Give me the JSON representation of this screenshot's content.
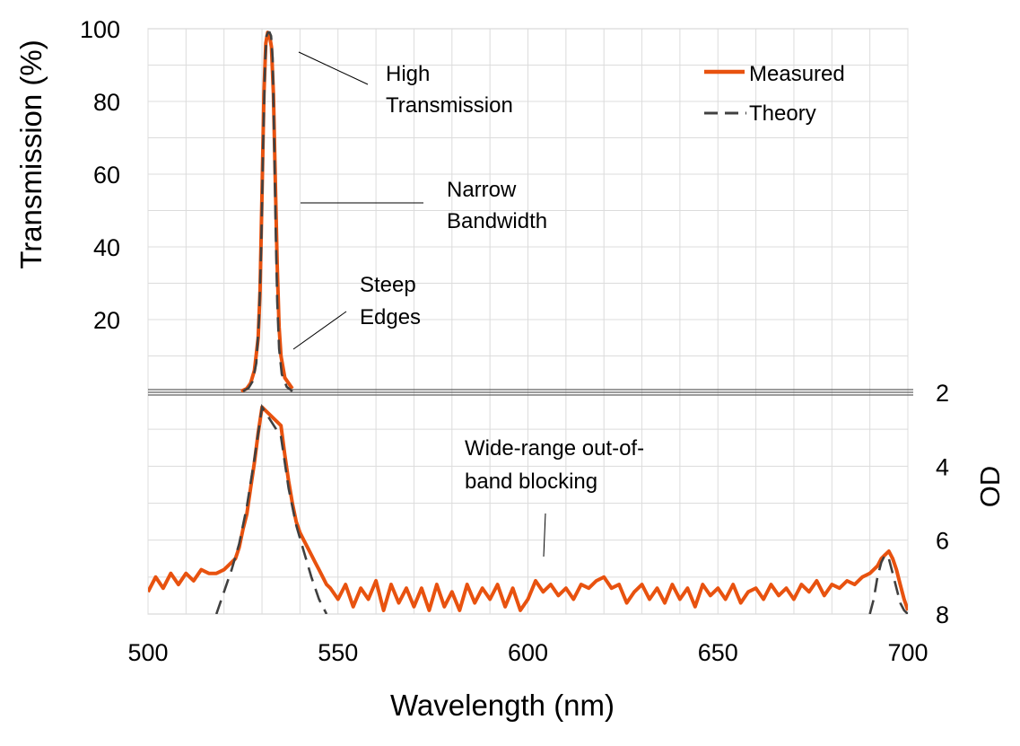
{
  "chart_data": {
    "type": "line",
    "xlabel": "Wavelength (nm)",
    "ylabel_left": "Transmission (%)",
    "ylabel_right": "OD",
    "xlim": [
      500,
      700
    ],
    "x_ticks": [
      "500",
      "550",
      "600",
      "650",
      "700"
    ],
    "upper_panel": {
      "scale": "linear transmission",
      "ylim": [
        0,
        100
      ],
      "y_ticks": [
        "20",
        "40",
        "60",
        "80",
        "100"
      ]
    },
    "lower_panel": {
      "scale": "optical density (reversed)",
      "ylim": [
        2,
        8
      ],
      "y_ticks": [
        "2",
        "4",
        "6",
        "8"
      ]
    },
    "grid": true,
    "legend_position": "top-right",
    "legend": [
      {
        "label": "Measured",
        "color": "#E8520F",
        "style": "solid"
      },
      {
        "label": "Theory",
        "color": "#404040",
        "style": "dashed"
      }
    ],
    "annotations": {
      "high": [
        "High",
        "Transmission"
      ],
      "narrow": [
        "Narrow",
        "Bandwidth"
      ],
      "steep": [
        "Steep",
        "Edges"
      ],
      "blocking": [
        "Wide-range out-of-",
        "band blocking"
      ]
    },
    "series": [
      {
        "name": "Measured",
        "color": "#E8520F",
        "transmission": {
          "x": [
            524.5,
            526,
            527,
            528,
            529,
            529.5,
            530,
            530.5,
            531,
            531.5,
            532,
            532.5,
            533,
            533.5,
            534,
            534.5,
            535,
            536,
            538
          ],
          "y": [
            0.3,
            1.0,
            2.5,
            6,
            15,
            28,
            55,
            82,
            96,
            99,
            98,
            95,
            82,
            58,
            35,
            18,
            10,
            4,
            1
          ]
        },
        "od": {
          "x": [
            500,
            502,
            504,
            506,
            508,
            510,
            512,
            514,
            516,
            518,
            520,
            522,
            523,
            524,
            525,
            526,
            527,
            528,
            529,
            530,
            535,
            536,
            537,
            538,
            539,
            540,
            541,
            542,
            543,
            544,
            545,
            546,
            547,
            548,
            550,
            552,
            554,
            556,
            558,
            560,
            562,
            564,
            566,
            568,
            570,
            572,
            574,
            576,
            578,
            580,
            582,
            584,
            586,
            588,
            590,
            592,
            594,
            596,
            598,
            600,
            602,
            604,
            606,
            608,
            610,
            612,
            614,
            616,
            618,
            620,
            622,
            624,
            626,
            628,
            630,
            632,
            634,
            636,
            638,
            640,
            642,
            644,
            646,
            648,
            650,
            652,
            654,
            656,
            658,
            660,
            662,
            664,
            666,
            668,
            670,
            672,
            674,
            676,
            678,
            680,
            682,
            684,
            686,
            688,
            690,
            692,
            693,
            694,
            695,
            696,
            697,
            698,
            699,
            700
          ],
          "y": [
            7.4,
            7.0,
            7.3,
            6.9,
            7.2,
            6.9,
            7.1,
            6.8,
            6.9,
            6.9,
            6.8,
            6.6,
            6.5,
            6.2,
            5.7,
            5.3,
            4.6,
            3.9,
            3.1,
            2.4,
            2.9,
            3.7,
            4.4,
            5.0,
            5.5,
            5.8,
            6.0,
            6.2,
            6.4,
            6.6,
            6.8,
            7.0,
            7.2,
            7.3,
            7.6,
            7.2,
            7.8,
            7.3,
            7.6,
            7.1,
            7.9,
            7.2,
            7.7,
            7.3,
            7.8,
            7.3,
            7.9,
            7.2,
            7.8,
            7.4,
            7.9,
            7.2,
            7.7,
            7.3,
            7.6,
            7.2,
            7.8,
            7.3,
            7.9,
            7.6,
            7.1,
            7.4,
            7.2,
            7.5,
            7.3,
            7.6,
            7.2,
            7.3,
            7.1,
            7.0,
            7.3,
            7.2,
            7.7,
            7.4,
            7.2,
            7.6,
            7.3,
            7.7,
            7.2,
            7.6,
            7.3,
            7.8,
            7.2,
            7.5,
            7.3,
            7.6,
            7.2,
            7.7,
            7.4,
            7.3,
            7.6,
            7.2,
            7.5,
            7.3,
            7.6,
            7.2,
            7.4,
            7.1,
            7.5,
            7.2,
            7.3,
            7.1,
            7.2,
            7.0,
            6.9,
            6.7,
            6.5,
            6.4,
            6.3,
            6.5,
            6.8,
            7.2,
            7.6,
            7.9
          ]
        }
      },
      {
        "name": "Theory",
        "color": "#404040",
        "transmission": {
          "x": [
            525,
            526.5,
            527.5,
            528.5,
            529.2,
            529.8,
            530.3,
            530.8,
            531.2,
            531.6,
            532,
            532.4,
            532.8,
            533.2,
            533.6,
            534,
            534.5,
            535.2,
            536.5,
            538
          ],
          "y": [
            0.3,
            1.2,
            3,
            8,
            20,
            40,
            68,
            90,
            98,
            99,
            99,
            98,
            92,
            70,
            45,
            25,
            12,
            5,
            1.5,
            0.3
          ]
        },
        "od": {
          "x": [
            518,
            520,
            522,
            524,
            526,
            528,
            530,
            535,
            537,
            539,
            541,
            543,
            545,
            547
          ],
          "y": [
            8,
            7.4,
            6.8,
            6.1,
            5.1,
            3.8,
            2.4,
            3.2,
            4.6,
            5.6,
            6.3,
            7.0,
            7.6,
            8
          ],
          "right_x": [
            690,
            691,
            692,
            693,
            694,
            695,
            696,
            697,
            698,
            699,
            700
          ],
          "right_y": [
            8,
            7.6,
            7.0,
            6.6,
            6.4,
            6.5,
            6.9,
            7.3,
            7.7,
            7.9,
            8
          ]
        }
      }
    ]
  }
}
